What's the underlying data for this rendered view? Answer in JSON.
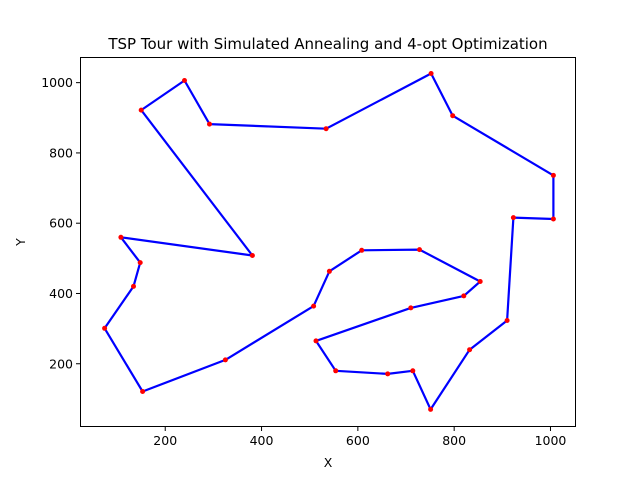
{
  "chart_data": {
    "type": "line",
    "title": "TSP Tour with Simulated Annealing and 4-opt Optimization",
    "xlabel": "X",
    "ylabel": "Y",
    "xlim": [
      23,
      1053
    ],
    "ylim": [
      20,
      1073
    ],
    "xticks": [
      200,
      400,
      600,
      800,
      1000
    ],
    "yticks": [
      200,
      400,
      600,
      800,
      1000
    ],
    "grid": false,
    "line_color": "#0000ff",
    "marker_color": "#ff0000",
    "series": [
      {
        "x": [
          752,
          797,
          1006,
          1006,
          923,
          910,
          832,
          751,
          714,
          662,
          554,
          513,
          710,
          820,
          854,
          728,
          608,
          541,
          508,
          325,
          153,
          74,
          134,
          148,
          108,
          381,
          150,
          240,
          292,
          534,
          752
        ],
        "y": [
          1026,
          906,
          736,
          612,
          616,
          323,
          240,
          70,
          180,
          171,
          180,
          265,
          359,
          393,
          434,
          525,
          523,
          463,
          364,
          211,
          121,
          301,
          420,
          488,
          560,
          508,
          922,
          1006,
          882,
          869,
          1026
        ]
      }
    ]
  }
}
